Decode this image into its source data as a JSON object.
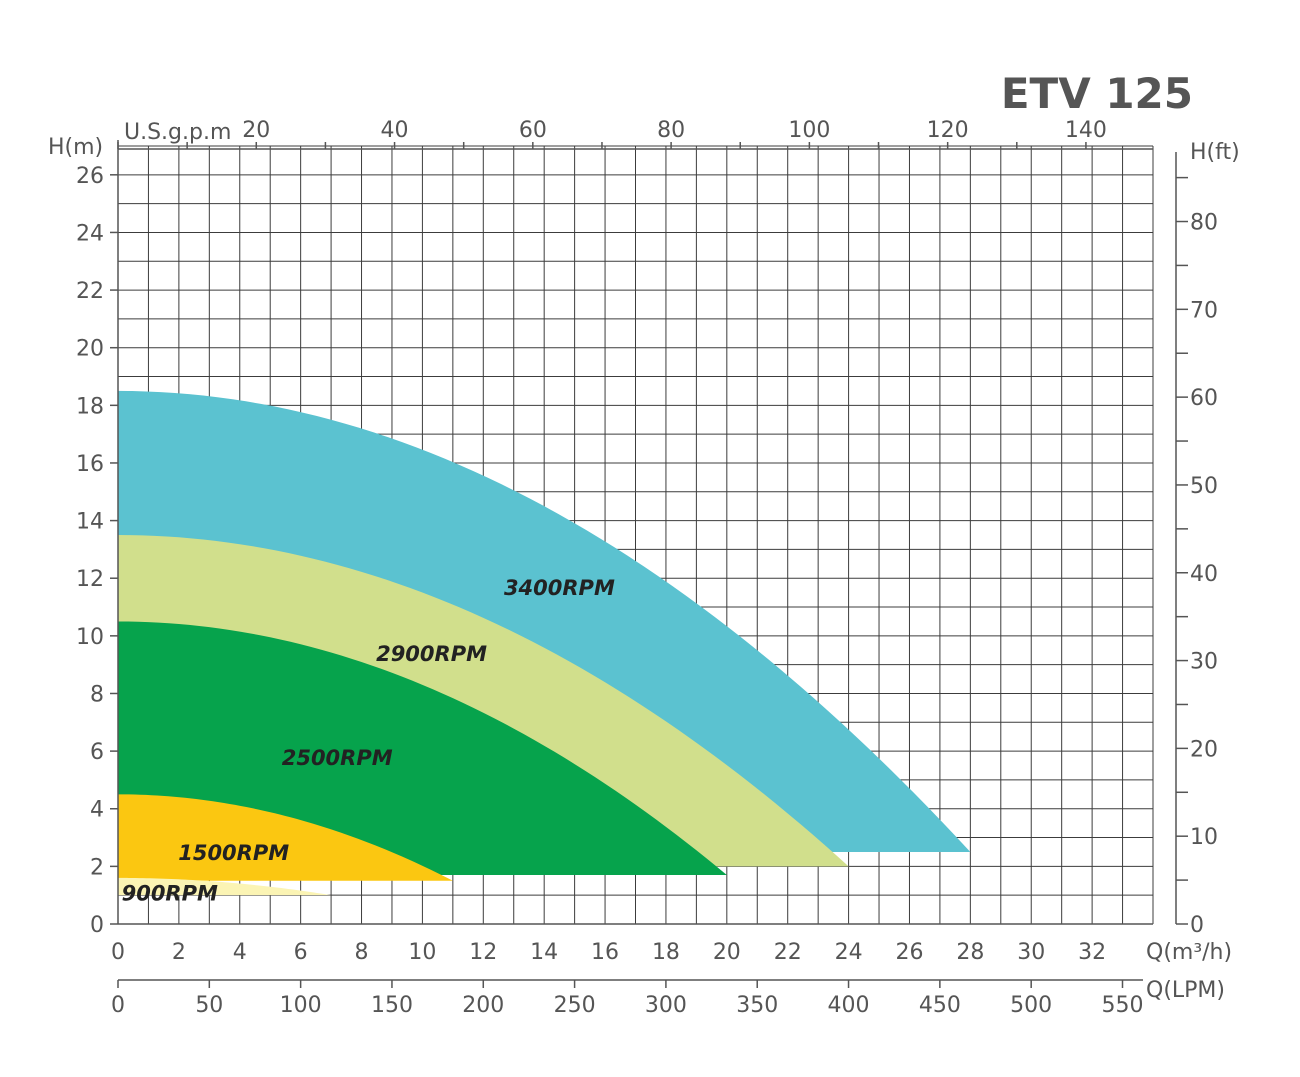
{
  "chart_data": {
    "type": "area",
    "title": "ETV 125",
    "axes": {
      "left": {
        "label": "H(m)",
        "unit": "m",
        "range": [
          0,
          27
        ],
        "ticks": [
          0,
          2,
          4,
          6,
          8,
          10,
          12,
          14,
          16,
          18,
          20,
          22,
          24,
          26
        ],
        "tick_labels": [
          "0",
          "2",
          "4",
          "6",
          "8",
          "10",
          "12",
          "14",
          "16",
          "18",
          "20",
          "22",
          "24",
          "26"
        ]
      },
      "right": {
        "label": "H(ft)",
        "unit": "ft",
        "range": [
          0,
          88.6
        ],
        "ticks": [
          0,
          10,
          20,
          30,
          40,
          50,
          60,
          70,
          80
        ],
        "tick_labels": [
          "0",
          "10",
          "20",
          "30",
          "40",
          "50",
          "60",
          "70",
          "80"
        ]
      },
      "bottom": {
        "label": "Q(m³/h)",
        "unit": "m³/h",
        "range": [
          0,
          34
        ],
        "ticks": [
          0,
          2,
          4,
          6,
          8,
          10,
          12,
          14,
          16,
          18,
          20,
          22,
          24,
          26,
          28,
          30,
          32
        ],
        "tick_labels": [
          "0",
          "2",
          "4",
          "6",
          "8",
          "10",
          "12",
          "14",
          "16",
          "18",
          "20",
          "22",
          "24",
          "26",
          "28",
          "30",
          "32"
        ]
      },
      "bottom2": {
        "label": "Q(LPM)",
        "unit": "LPM",
        "range": [
          0,
          566.7
        ],
        "ticks": [
          0,
          50,
          100,
          150,
          200,
          250,
          300,
          350,
          400,
          450,
          500,
          550
        ],
        "tick_labels": [
          "0",
          "50",
          "100",
          "150",
          "200",
          "250",
          "300",
          "350",
          "400",
          "450",
          "500",
          "550"
        ]
      },
      "top": {
        "label": "U.S.g.p.m",
        "unit": "US gpm",
        "range": [
          0,
          149.7
        ],
        "ticks": [
          20,
          40,
          60,
          80,
          100,
          120,
          140
        ],
        "tick_labels": [
          "20",
          "40",
          "60",
          "80",
          "100",
          "120",
          "140"
        ]
      }
    },
    "grid": true,
    "series": [
      {
        "name": "3400RPM",
        "color": "#5bc2d0",
        "h_upper_shutoff": 18.5,
        "q_max": 28,
        "h_at_q_max": 2.5,
        "h_lower": 2.5,
        "label_pos": {
          "q": 14.5,
          "h": 11.7
        }
      },
      {
        "name": "2900RPM",
        "color": "#d1df8c",
        "h_upper_shutoff": 13.5,
        "q_max": 24,
        "h_at_q_max": 2.0,
        "h_lower": 2.0,
        "label_pos": {
          "q": 10.3,
          "h": 9.4
        }
      },
      {
        "name": "2500RPM",
        "color": "#06a34c",
        "h_upper_shutoff": 10.5,
        "q_max": 20,
        "h_at_q_max": 1.7,
        "h_lower": 1.7,
        "label_pos": {
          "q": 7.2,
          "h": 5.8
        }
      },
      {
        "name": "1500RPM",
        "color": "#fbc711",
        "h_upper_shutoff": 4.5,
        "q_max": 11,
        "h_at_q_max": 1.5,
        "h_lower": 1.5,
        "label_pos": {
          "q": 3.8,
          "h": 2.5
        }
      },
      {
        "name": "900RPM",
        "color": "#fbf4b4",
        "h_upper_shutoff": 1.6,
        "q_max": 7,
        "h_at_q_max": 1.0,
        "h_lower": 1.0,
        "label_pos": {
          "q": 1.7,
          "h": 1.1
        }
      }
    ]
  }
}
